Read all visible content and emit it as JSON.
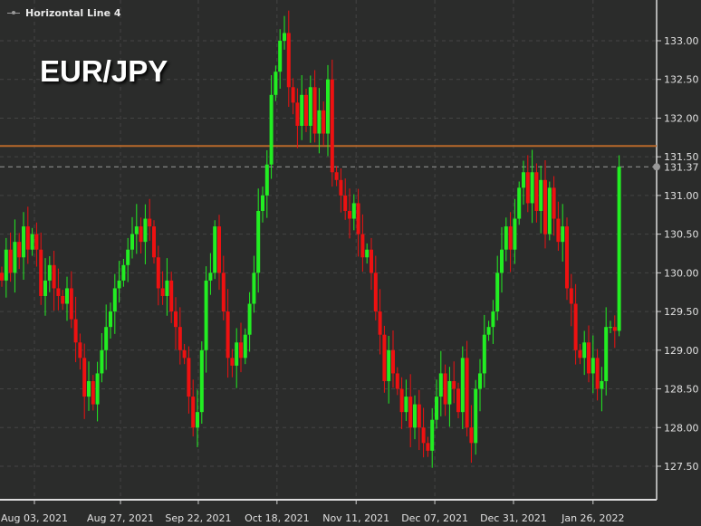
{
  "legend": {
    "label": "Horizontal Line 4"
  },
  "title": "EUR/JPY",
  "chart_data": {
    "type": "candlestick",
    "title": "EUR/JPY",
    "ylim": [
      127.1,
      133.6
    ],
    "y_ticks": [
      127.5,
      128.0,
      128.5,
      129.0,
      129.5,
      130.0,
      130.5,
      131.0,
      131.5,
      132.0,
      132.5,
      133.0
    ],
    "y_tick_labels": [
      "127.50",
      "128.00",
      "128.50",
      "129.00",
      "129.50",
      "130.00",
      "130.50",
      "131.00",
      "131.50",
      "132.00",
      "132.50",
      "133.00"
    ],
    "x_tick_labels": [
      "Aug 03, 2021",
      "Aug 27, 2021",
      "Sep 22, 2021",
      "Oct 18, 2021",
      "Nov 11, 2021",
      "Dec 07, 2021",
      "Dec 31, 2021",
      "Jan 26, 2022"
    ],
    "x_tick_candle_index": [
      7.5,
      27.3,
      45.2,
      63.3,
      81.5,
      99.6,
      117.7,
      136.0
    ],
    "first_open": 130.0,
    "closes": [
      129.9,
      130.3,
      130.0,
      130.4,
      130.2,
      130.6,
      130.3,
      130.5,
      130.3,
      129.7,
      129.9,
      130.1,
      129.8,
      129.7,
      129.6,
      129.8,
      129.4,
      129.1,
      128.9,
      128.4,
      128.6,
      128.3,
      128.7,
      129.0,
      129.3,
      129.5,
      129.8,
      129.9,
      130.1,
      130.3,
      130.5,
      130.6,
      130.4,
      130.7,
      130.6,
      130.2,
      129.8,
      129.7,
      129.9,
      129.5,
      129.3,
      129.0,
      128.9,
      128.4,
      128.0,
      128.2,
      129.0,
      129.9,
      130.0,
      130.6,
      130.0,
      129.5,
      128.9,
      128.8,
      129.1,
      128.9,
      129.2,
      129.6,
      130.0,
      130.8,
      131.0,
      131.4,
      132.3,
      132.6,
      133.0,
      133.1,
      132.4,
      132.2,
      131.9,
      132.3,
      131.9,
      132.4,
      131.8,
      132.1,
      131.8,
      132.5,
      131.3,
      131.2,
      131.0,
      130.8,
      130.7,
      130.9,
      130.5,
      130.2,
      130.3,
      130.0,
      129.5,
      129.2,
      128.6,
      129.0,
      128.7,
      128.5,
      128.2,
      128.4,
      128.0,
      128.3,
      128.0,
      127.8,
      127.7,
      128.1,
      128.4,
      128.7,
      128.3,
      128.6,
      128.5,
      128.2,
      128.9,
      128.0,
      127.8,
      128.5,
      128.7,
      129.2,
      129.3,
      129.5,
      130.0,
      130.3,
      130.6,
      130.3,
      130.7,
      131.1,
      131.3,
      130.9,
      131.3,
      130.8,
      131.2,
      130.5,
      131.1,
      130.7,
      130.4,
      130.6,
      129.8,
      129.6,
      129.0,
      128.9,
      129.1,
      128.7,
      128.9,
      128.5,
      128.6,
      129.3,
      129.3,
      129.25,
      131.37
    ],
    "last_high": 131.52,
    "horizontal_line": {
      "name": "Horizontal Line 4",
      "value": 131.64,
      "color": "#b8682a"
    },
    "last_price": {
      "value": 131.37,
      "label": "131.37"
    },
    "colors": {
      "up": "#22ee22",
      "down": "#ee1111",
      "background": "#2b2c2b",
      "grid": "#444444",
      "text": "#e0e0e0"
    },
    "grid": true
  }
}
